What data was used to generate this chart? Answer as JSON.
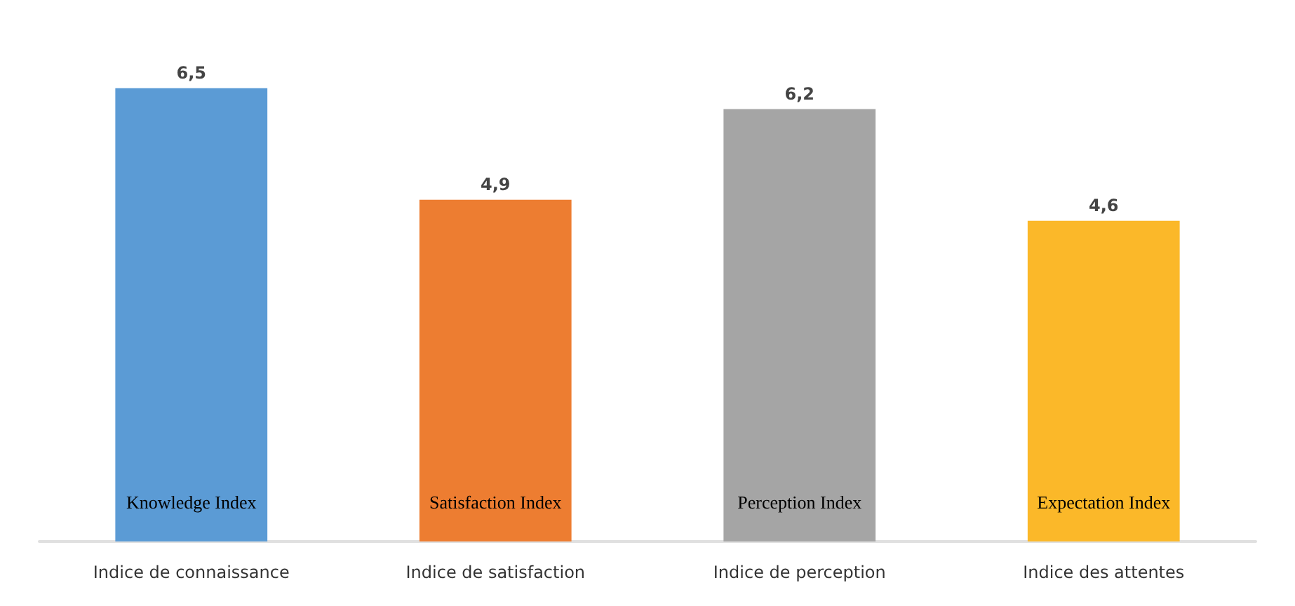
{
  "chart_data": {
    "type": "bar",
    "categories": [
      "Indice de connaissance",
      "Indice de satisfaction",
      "Indice de perception",
      "Indice des attentes"
    ],
    "values": [
      6.5,
      4.9,
      6.2,
      4.6
    ],
    "value_labels": [
      "6,5",
      "4,9",
      "6,2",
      "4,6"
    ],
    "colors": [
      "#5b9bd5",
      "#ed7d31",
      "#a5a5a5",
      "#fbb829"
    ],
    "annotations": [
      "Knowledge Index",
      "Satisfaction Index",
      "Perception Index",
      "Expectation Index"
    ],
    "grid": false
  }
}
